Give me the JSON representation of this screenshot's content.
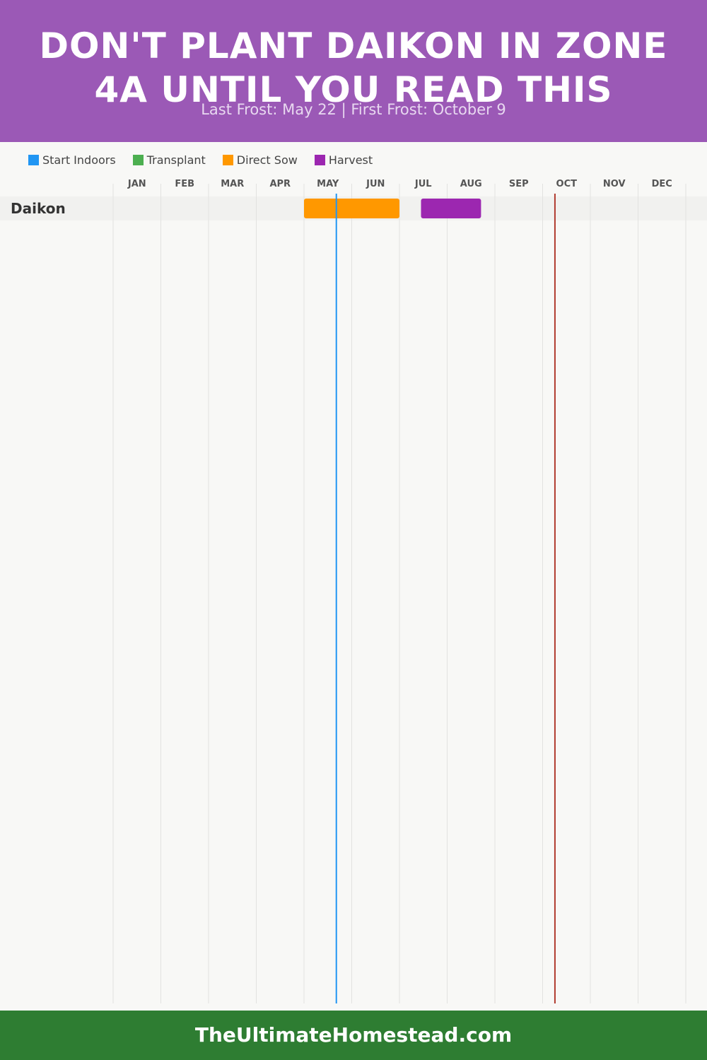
{
  "header": {
    "title": "DON'T PLANT DAIKON IN ZONE 4A UNTIL YOU READ THIS",
    "subtitle": "Last Frost: May 22 | First Frost: October 9",
    "background": "#9b59b6"
  },
  "legend": [
    {
      "label": "Start Indoors",
      "color": "#2196f3"
    },
    {
      "label": "Transplant",
      "color": "#4caf50"
    },
    {
      "label": "Direct Sow",
      "color": "#ff9800"
    },
    {
      "label": "Harvest",
      "color": "#9c27b0"
    }
  ],
  "chart_data": {
    "type": "gantt",
    "months": [
      "JAN",
      "FEB",
      "MAR",
      "APR",
      "MAY",
      "JUN",
      "JUL",
      "AUG",
      "SEP",
      "OCT",
      "NOV",
      "DEC"
    ],
    "rows": [
      {
        "crop": "Daikon",
        "bars": [
          {
            "activity": "Direct Sow",
            "start": "May 1",
            "end": "Jun 30",
            "color": "#ff9800"
          },
          {
            "activity": "Harvest",
            "start": "Jul 15",
            "end": "Aug 22",
            "color": "#9c27b0"
          }
        ]
      }
    ],
    "markers": [
      {
        "date": "May 22",
        "color": "#2196f3"
      },
      {
        "date": "Oct 9",
        "color": "#b03a2e"
      }
    ],
    "grid": true
  },
  "footer": {
    "text": "TheUltimateHomestead.com",
    "background": "#2e7d32"
  }
}
